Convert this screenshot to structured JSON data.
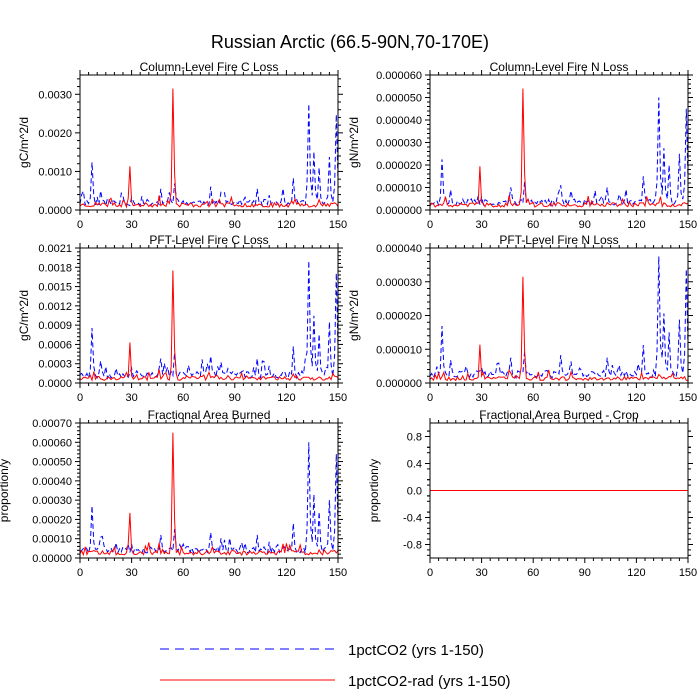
{
  "title": "Russian Arctic (66.5-90N,70-170E)",
  "colors": {
    "series_a": "#0000ff",
    "series_b": "#ff0000",
    "axis": "#000000"
  },
  "legend": [
    {
      "label": "1pctCO2 (yrs 1-150)",
      "color": "#0000ff",
      "style": "dashed"
    },
    {
      "label": "1pctCO2-rad (yrs 1-150)",
      "color": "#ff0000",
      "style": "solid"
    }
  ],
  "chart_data": [
    {
      "type": "line",
      "title": "Column-Level Fire C Loss",
      "xlabel": "",
      "ylabel": "gC/m^2/d",
      "xlim": [
        0,
        150
      ],
      "ylim": [
        0,
        0.0035
      ],
      "xticks": [
        0,
        30,
        60,
        90,
        120,
        150
      ],
      "yticks": [
        0.0,
        0.001,
        0.002,
        0.003
      ],
      "ytick_labels": [
        "0.0000",
        "0.0010",
        "0.0020",
        "0.0030"
      ],
      "grid": false,
      "legend_placement": "bottom",
      "series": [
        {
          "name": "1pctCO2 (yrs 1-150)",
          "peak": 0.00275,
          "seed": 11
        },
        {
          "name": "1pctCO2-rad (yrs 1-150)",
          "peak": 0.00315,
          "seed": 23
        }
      ]
    },
    {
      "type": "line",
      "title": "Column-Level Fire N Loss",
      "xlabel": "",
      "ylabel": "gN/m^2/d",
      "xlim": [
        0,
        150
      ],
      "ylim": [
        0,
        6e-05
      ],
      "xticks": [
        0,
        30,
        60,
        90,
        120,
        150
      ],
      "yticks": [
        0.0,
        1e-05,
        2e-05,
        3e-05,
        4e-05,
        5e-05,
        6e-05
      ],
      "ytick_labels": [
        "0.000000",
        "0.000010",
        "0.000020",
        "0.000030",
        "0.000040",
        "0.000050",
        "0.000060"
      ],
      "grid": false,
      "legend_placement": "bottom",
      "series": [
        {
          "name": "1pctCO2 (yrs 1-150)",
          "peak": 5e-05,
          "seed": 37
        },
        {
          "name": "1pctCO2-rad (yrs 1-150)",
          "peak": 5.4e-05,
          "seed": 41
        }
      ]
    },
    {
      "type": "line",
      "title": "PFT-Level Fire C Loss",
      "xlabel": "",
      "ylabel": "gC/m^2/d",
      "xlim": [
        0,
        150
      ],
      "ylim": [
        0,
        0.0021
      ],
      "xticks": [
        0,
        30,
        60,
        90,
        120,
        150
      ],
      "yticks": [
        0.0,
        0.0003,
        0.0006,
        0.0009,
        0.0012,
        0.0015,
        0.0018,
        0.0021
      ],
      "ytick_labels": [
        "0.0000",
        "0.0003",
        "0.0006",
        "0.0009",
        "0.0012",
        "0.0015",
        "0.0018",
        "0.0021"
      ],
      "grid": false,
      "legend_placement": "bottom",
      "series": [
        {
          "name": "1pctCO2 (yrs 1-150)",
          "peak": 0.0019,
          "seed": 53
        },
        {
          "name": "1pctCO2-rad (yrs 1-150)",
          "peak": 0.00175,
          "seed": 59
        }
      ]
    },
    {
      "type": "line",
      "title": "PFT-Level Fire N Loss",
      "xlabel": "",
      "ylabel": "gN/m^2/d",
      "xlim": [
        0,
        150
      ],
      "ylim": [
        0,
        4e-05
      ],
      "xticks": [
        0,
        30,
        60,
        90,
        120,
        150
      ],
      "yticks": [
        0.0,
        1e-05,
        2e-05,
        3e-05,
        4e-05
      ],
      "ytick_labels": [
        "0.000000",
        "0.000010",
        "0.000020",
        "0.000030",
        "0.000040"
      ],
      "grid": false,
      "legend_placement": "bottom",
      "series": [
        {
          "name": "1pctCO2 (yrs 1-150)",
          "peak": 3.75e-05,
          "seed": 61
        },
        {
          "name": "1pctCO2-rad (yrs 1-150)",
          "peak": 3.15e-05,
          "seed": 67
        }
      ]
    },
    {
      "type": "line",
      "title": "Fractional Area Burned",
      "xlabel": "",
      "ylabel": "proportion/y",
      "xlim": [
        0,
        150
      ],
      "ylim": [
        0,
        0.0007
      ],
      "xticks": [
        0,
        30,
        60,
        90,
        120,
        150
      ],
      "yticks": [
        0.0,
        0.0001,
        0.0002,
        0.0003,
        0.0004,
        0.0005,
        0.0006,
        0.0007
      ],
      "ytick_labels": [
        "0.00000",
        "0.00010",
        "0.00020",
        "0.00030",
        "0.00040",
        "0.00050",
        "0.00060",
        "0.00070"
      ],
      "grid": false,
      "legend_placement": "bottom",
      "series": [
        {
          "name": "1pctCO2 (yrs 1-150)",
          "peak": 0.0006,
          "seed": 71
        },
        {
          "name": "1pctCO2-rad (yrs 1-150)",
          "peak": 0.00065,
          "seed": 79
        }
      ]
    },
    {
      "type": "line",
      "title": "Fractional Area Burned - Crop",
      "xlabel": "",
      "ylabel": "proportion/y",
      "xlim": [
        0,
        150
      ],
      "ylim": [
        -1,
        1
      ],
      "xticks": [
        0,
        30,
        60,
        90,
        120,
        150
      ],
      "yticks": [
        -0.8,
        -0.4,
        0.0,
        0.4,
        0.8
      ],
      "ytick_labels": [
        "-0.8",
        "-0.4",
        "0.0",
        "0.4",
        "0.8"
      ],
      "grid": false,
      "legend_placement": "bottom",
      "series": [
        {
          "name": "1pctCO2 (yrs 1-150)",
          "constant": 0.0
        },
        {
          "name": "1pctCO2-rad (yrs 1-150)",
          "constant": 0.0
        }
      ]
    }
  ]
}
